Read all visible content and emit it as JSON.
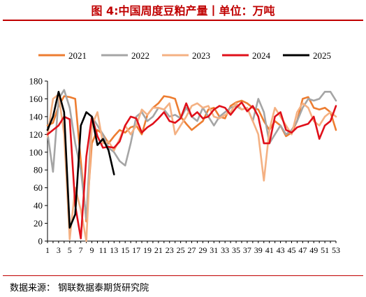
{
  "title": "图 4:中国周度豆粕产量丨单位：万吨",
  "source": "数据来源： 钢联数据泰期货研究院",
  "chart_data": {
    "type": "line",
    "title": "图 4:中国周度豆粕产量丨单位：万吨",
    "xlabel": "",
    "ylabel": "",
    "ylim": [
      0,
      180
    ],
    "xlim": [
      1,
      53
    ],
    "y_ticks": [
      0,
      20,
      40,
      60,
      80,
      100,
      120,
      140,
      160,
      180
    ],
    "x_tick_labels": [
      "1",
      "3",
      "5",
      "7",
      "9",
      "11",
      "13",
      "15",
      "17",
      "19",
      "21",
      "23",
      "25",
      "27",
      "29",
      "31",
      "33",
      "35",
      "37",
      "39",
      "41",
      "43",
      "45",
      "47",
      "49",
      "51",
      "53"
    ],
    "grid": false,
    "legend_position": "top",
    "series": [
      {
        "name": "2021",
        "color": "#ed7d31",
        "values": [
          130,
          133,
          152,
          163,
          162,
          160,
          90,
          22,
          110,
          125,
          120,
          110,
          118,
          125,
          122,
          128,
          130,
          120,
          142,
          150,
          155,
          163,
          162,
          160,
          140,
          132,
          125,
          130,
          135,
          148,
          150,
          140,
          138,
          152,
          156,
          158,
          155,
          150,
          148,
          135,
          125,
          135,
          130,
          118,
          122,
          135,
          160,
          162,
          150,
          148,
          150,
          145,
          125
        ]
      },
      {
        "name": "2022",
        "color": "#a5a5a5",
        "values": [
          122,
          78,
          160,
          170,
          150,
          110,
          80,
          25,
          140,
          130,
          120,
          105,
          100,
          90,
          85,
          110,
          140,
          145,
          135,
          140,
          150,
          148,
          140,
          142,
          138,
          150,
          140,
          135,
          150,
          140,
          130,
          140,
          145,
          150,
          152,
          148,
          150,
          135,
          160,
          145,
          110,
          120,
          130,
          120,
          125,
          135,
          150,
          160,
          158,
          160,
          168,
          168,
          158
        ]
      },
      {
        "name": "2023",
        "color": "#f4b183",
        "values": [
          118,
          160,
          165,
          120,
          2,
          60,
          35,
          0,
          130,
          145,
          110,
          112,
          102,
          115,
          130,
          120,
          130,
          148,
          142,
          150,
          150,
          148,
          155,
          120,
          130,
          140,
          152,
          155,
          150,
          152,
          140,
          138,
          142,
          145,
          155,
          148,
          150,
          135,
          120,
          68,
          125,
          150,
          140,
          130,
          120,
          145,
          155,
          150,
          135,
          130,
          140,
          145,
          140
        ]
      },
      {
        "name": "2024",
        "color": "#e0101a",
        "values": [
          120,
          125,
          130,
          140,
          137,
          40,
          3,
          95,
          140,
          118,
          105,
          106,
          105,
          112,
          130,
          140,
          138,
          122,
          128,
          132,
          138,
          145,
          135,
          133,
          138,
          155,
          140,
          145,
          138,
          140,
          148,
          152,
          150,
          142,
          150,
          156,
          146,
          152,
          140,
          110,
          110,
          140,
          145,
          125,
          122,
          128,
          130,
          132,
          140,
          115,
          130,
          135,
          152
        ]
      },
      {
        "name": "2025",
        "color": "#000000",
        "values": [
          125,
          140,
          168,
          145,
          15,
          30,
          130,
          145,
          140,
          108,
          115,
          102,
          75
        ]
      }
    ]
  }
}
